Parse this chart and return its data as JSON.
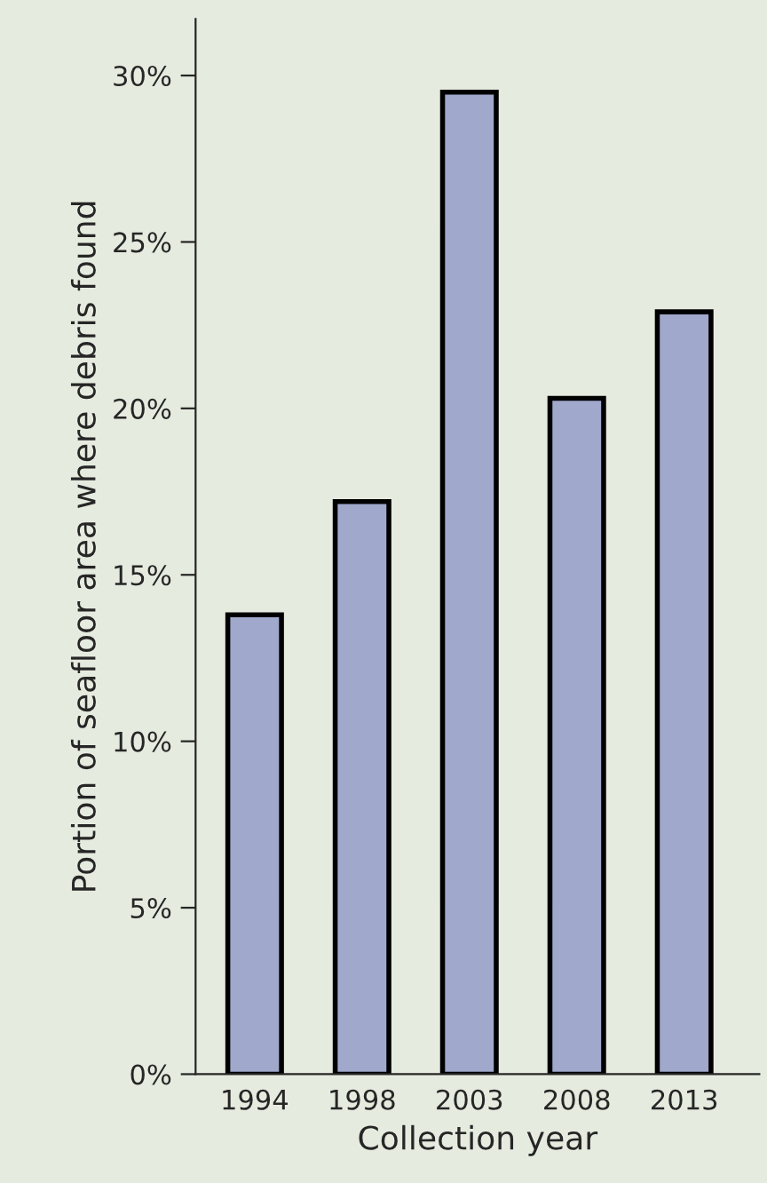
{
  "chart_data": {
    "type": "bar",
    "xlabel": "Collection year",
    "ylabel": "Portion of seafloor area where debris found",
    "categories": [
      "1994",
      "1998",
      "2003",
      "2008",
      "2013"
    ],
    "values": [
      13.8,
      17.2,
      29.5,
      20.3,
      22.9
    ],
    "color": "#a0a8cc",
    "ylim": [
      0,
      31.7
    ],
    "yticks": [
      {
        "value": 0,
        "label": "0%"
      },
      {
        "value": 5,
        "label": "5%"
      },
      {
        "value": 10,
        "label": "10%"
      },
      {
        "value": 15,
        "label": "15%"
      },
      {
        "value": 20,
        "label": "20%"
      },
      {
        "value": 25,
        "label": "25%"
      },
      {
        "value": 30,
        "label": "30%"
      }
    ],
    "grid": false
  }
}
